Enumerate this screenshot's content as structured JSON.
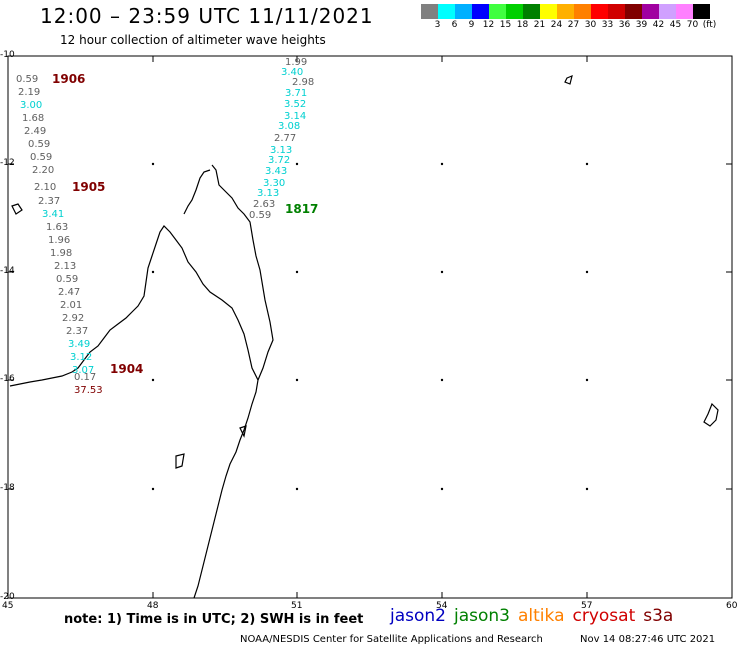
{
  "title": "12:00 – 23:59 UTC 11/11/2021",
  "subtitle": "12 hour collection of altimeter wave heights",
  "legend": {
    "colors": [
      "#808080",
      "#00ffff",
      "#00b0ff",
      "#0000ff",
      "#40ff40",
      "#00d000",
      "#008000",
      "#ffff00",
      "#ffb000",
      "#ff8000",
      "#ff0000",
      "#d00000",
      "#800000",
      "#a000a0",
      "#d0a0ff",
      "#ff80ff",
      "#000000"
    ],
    "labels": [
      "3",
      "6",
      "9",
      "12",
      "15",
      "18",
      "21",
      "24",
      "27",
      "30",
      "33",
      "36",
      "39",
      "42",
      "45",
      "70",
      "(ft)"
    ]
  },
  "axes": {
    "lat_labels": [
      "-10",
      "-12",
      "-14",
      "-16",
      "-18",
      "-20"
    ],
    "lon_labels": [
      "45",
      "48",
      "51",
      "54",
      "57",
      "60"
    ]
  },
  "tracks": {
    "t1906": {
      "label": "1906",
      "values": [
        "0.59",
        "2.19",
        "3.00",
        "1.68",
        "2.49",
        "0.59",
        "0.59",
        "2.20"
      ]
    },
    "t1905": {
      "label": "1905",
      "values": [
        "2.10",
        "2.37",
        "3.41",
        "1.63",
        "1.96",
        "1.98",
        "2.13",
        "0.59",
        "2.47",
        "2.01",
        "2.92",
        "2.37",
        "3.49",
        "3.12",
        "3.07",
        "0.17"
      ]
    },
    "t1904": {
      "label": "1904",
      "values": [
        "37.53"
      ]
    },
    "t1817": {
      "label": "1817",
      "values": [
        "1.99",
        "3.40",
        "2.98",
        "3.71",
        "3.52",
        "3.14",
        "3.08",
        "2.77",
        "3.13",
        "3.72",
        "3.43",
        "3.30",
        "3.13",
        "2.63",
        "0.59"
      ]
    }
  },
  "note": "note: 1) Time is in UTC; 2) SWH is in feet",
  "satellites": [
    {
      "name": "jason2",
      "color": "#0000c0"
    },
    {
      "name": "jason3",
      "color": "#008000"
    },
    {
      "name": "altika",
      "color": "#ff8000"
    },
    {
      "name": "cryosat",
      "color": "#d00000"
    },
    {
      "name": "s3a",
      "color": "#800000"
    }
  ],
  "footer": "NOAA/NESDIS Center for Satellite Applications and Research",
  "footer_time": "Nov 14 08:27:46 UTC 2021"
}
